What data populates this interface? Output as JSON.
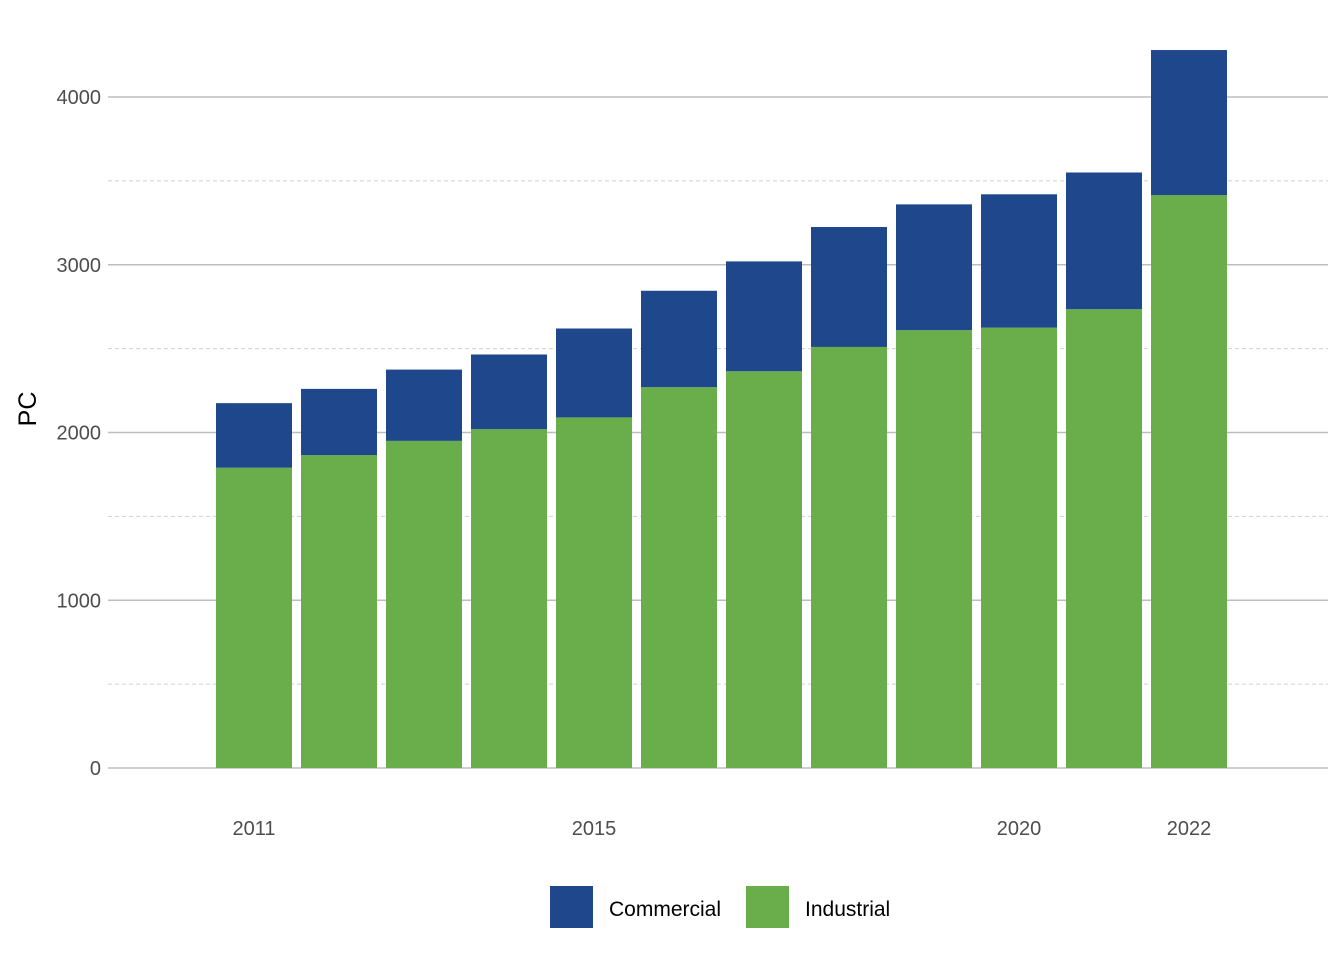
{
  "chart_data": {
    "type": "bar",
    "stacked": true,
    "title": "",
    "xlabel": "",
    "ylabel": "PC",
    "categories": [
      2011,
      2012,
      2013,
      2014,
      2015,
      2016,
      2017,
      2018,
      2019,
      2020,
      2021,
      2022
    ],
    "x_tick_labels": [
      "2011",
      "2015",
      "2020",
      "2022"
    ],
    "ylim": [
      0,
      4300
    ],
    "y_ticks": [
      0,
      1000,
      2000,
      3000,
      4000
    ],
    "y_tick_labels": [
      "0",
      "1000",
      "2000",
      "3000",
      "4000"
    ],
    "series": [
      {
        "name": "Industrial",
        "color": "#6aad4b",
        "values": [
          1790,
          1865,
          1950,
          2020,
          2090,
          2270,
          2365,
          2510,
          2610,
          2625,
          2735,
          3415
        ]
      },
      {
        "name": "Commercial",
        "color": "#1f488c",
        "values": [
          385,
          395,
          425,
          445,
          530,
          575,
          655,
          715,
          750,
          795,
          815,
          865
        ]
      }
    ],
    "legend": {
      "position": "bottom",
      "items": [
        "Commercial",
        "Industrial"
      ]
    }
  }
}
